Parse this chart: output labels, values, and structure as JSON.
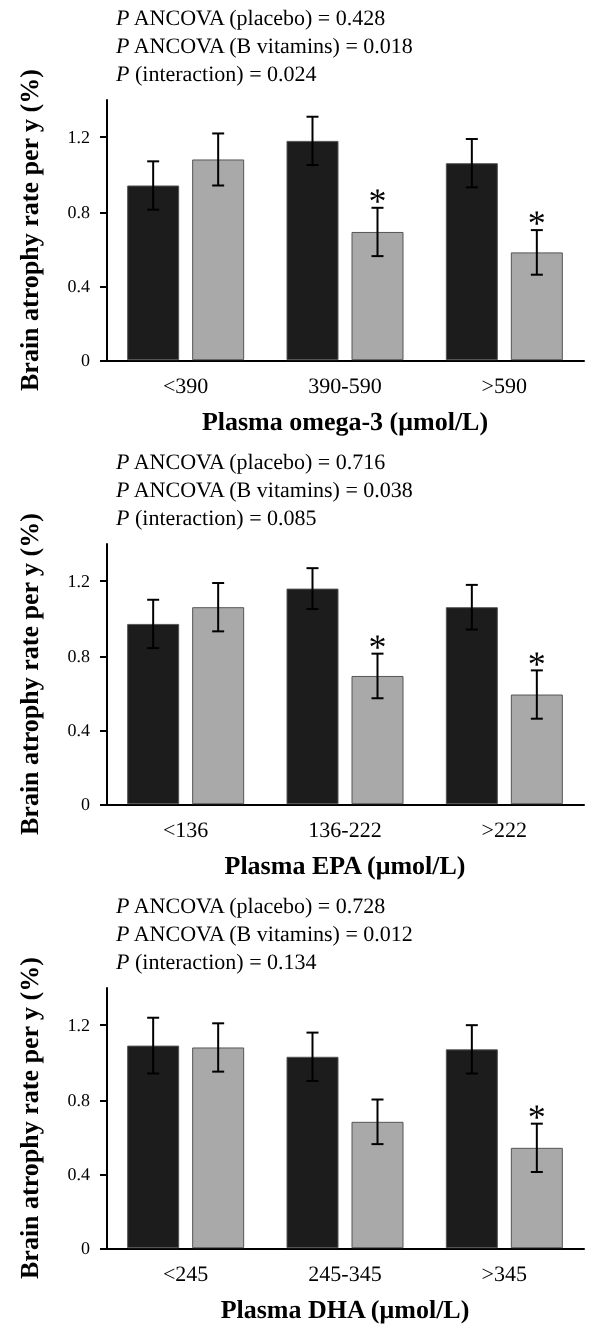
{
  "chart_data": [
    {
      "type": "bar",
      "xlabel": "Plasma omega-3 (μmol/L)",
      "ylabel": "Brain atrophy rate per y (%)",
      "categories": [
        "<390",
        "390-590",
        ">590"
      ],
      "series": [
        {
          "color": "#1c1c1c",
          "values": [
            0.94,
            1.18,
            1.06
          ],
          "errors": [
            0.13,
            0.13,
            0.13
          ]
        },
        {
          "color": "#a9a9a9",
          "values": [
            1.08,
            0.69,
            0.58
          ],
          "errors": [
            0.14,
            0.13,
            0.12
          ]
        }
      ],
      "ylim": [
        0,
        1.4
      ],
      "yticks": [
        0,
        0.4,
        0.8,
        1.2
      ],
      "grid": false,
      "annotations": [
        "P ANCOVA (placebo) = 0.428",
        "P ANCOVA (B vitamins) = 0.018",
        "P (interaction) = 0.024",
        {
          "text": "*",
          "x": "390-590",
          "y": 0.9
        },
        {
          "text": "*",
          "x": ">590",
          "y": 0.78
        }
      ]
    },
    {
      "type": "bar",
      "xlabel": "Plasma EPA (μmol/L)",
      "ylabel": "Brain atrophy rate per y (%)",
      "categories": [
        "<136",
        "136-222",
        ">222"
      ],
      "series": [
        {
          "color": "#1c1c1c",
          "values": [
            0.97,
            1.16,
            1.06
          ],
          "errors": [
            0.13,
            0.11,
            0.12
          ]
        },
        {
          "color": "#a9a9a9",
          "values": [
            1.06,
            0.69,
            0.59
          ],
          "errors": [
            0.13,
            0.12,
            0.13
          ]
        }
      ],
      "ylim": [
        0,
        1.4
      ],
      "yticks": [
        0,
        0.4,
        0.8,
        1.2
      ],
      "grid": false,
      "annotations": [
        "P ANCOVA (placebo) = 0.716",
        "P ANCOVA (B vitamins) = 0.038",
        "P (interaction) = 0.085",
        {
          "text": "*",
          "x": "136-222",
          "y": 0.89
        },
        {
          "text": "*",
          "x": ">222",
          "y": 0.8
        }
      ]
    },
    {
      "type": "bar",
      "xlabel": "Plasma DHA (μmol/L)",
      "ylabel": "Brain atrophy rate per y (%)",
      "categories": [
        "<245",
        "245-345",
        ">345"
      ],
      "series": [
        {
          "color": "#1c1c1c",
          "values": [
            1.09,
            1.03,
            1.07
          ],
          "errors": [
            0.15,
            0.13,
            0.13
          ]
        },
        {
          "color": "#a9a9a9",
          "values": [
            1.08,
            0.68,
            0.54
          ],
          "errors": [
            0.13,
            0.12,
            0.13
          ]
        }
      ],
      "ylim": [
        0,
        1.4
      ],
      "yticks": [
        0,
        0.4,
        0.8,
        1.2
      ],
      "grid": false,
      "annotations": [
        "P ANCOVA (placebo) = 0.728",
        "P ANCOVA (B vitamins) = 0.012",
        "P (interaction) = 0.134",
        {
          "text": "*",
          "x": ">345",
          "y": 0.75
        }
      ]
    }
  ]
}
